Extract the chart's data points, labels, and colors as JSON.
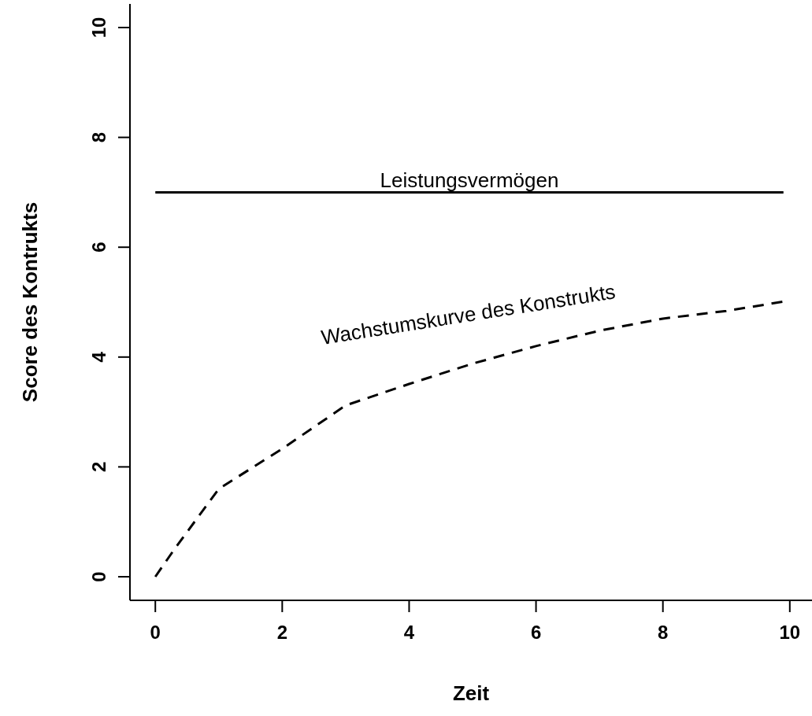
{
  "chart_data": {
    "type": "line",
    "xlabel": "Zeit",
    "ylabel": "Score des Kontrukts",
    "xlim": [
      -0.4,
      10.35
    ],
    "ylim": [
      -0.43,
      10.43
    ],
    "xticks": [
      0,
      2,
      4,
      6,
      8,
      10
    ],
    "yticks": [
      0,
      2,
      4,
      6,
      8,
      10
    ],
    "grid": false,
    "series": [
      {
        "name": "Leistungsvermögen",
        "color": "#000000",
        "line_style": "solid",
        "x": [
          0,
          9.9
        ],
        "values": [
          7,
          7
        ]
      },
      {
        "name": "Wachstumskurve des Konstrukts",
        "color": "#000000",
        "line_style": "dashed",
        "x": [
          0,
          0.3,
          1,
          2,
          3,
          4,
          5,
          6,
          7,
          8,
          9,
          9.9
        ],
        "values": [
          0,
          0.5,
          1.6,
          2.33,
          3.12,
          3.51,
          3.88,
          4.2,
          4.48,
          4.7,
          4.84,
          5.01
        ]
      }
    ]
  }
}
